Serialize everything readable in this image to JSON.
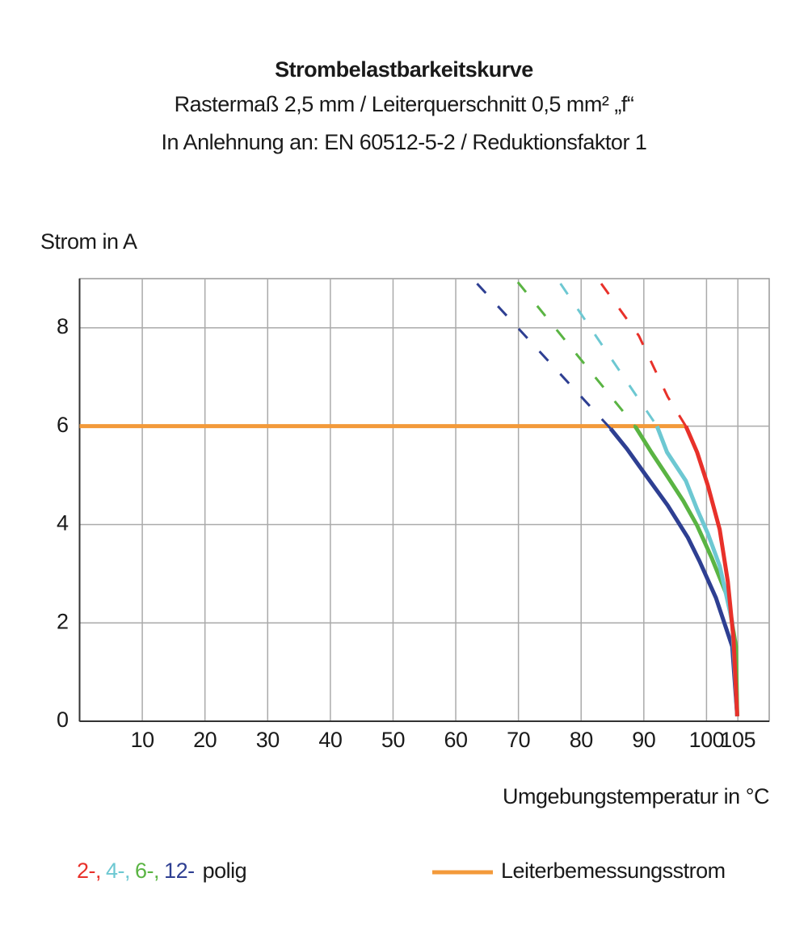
{
  "chart_data": {
    "type": "line",
    "title": "Strombelastbarkeitskurve",
    "subtitle": [
      "Rastermaß 2,5 mm / Leiterquerschnitt 0,5 mm² „f“",
      "In Anlehnung an: EN 60512-5-2 / Reduktionsfaktor 1"
    ],
    "ylabel": "Strom in A",
    "xlabel": "Umgebungstemperatur in °C",
    "xlim": [
      0,
      110
    ],
    "ylim": [
      0,
      9
    ],
    "xticks": [
      10,
      20,
      30,
      40,
      50,
      60,
      70,
      80,
      90,
      100,
      105
    ],
    "yticks": [
      0,
      2,
      4,
      6,
      8
    ],
    "grid": true,
    "legend_suffix": "polig",
    "series": [
      {
        "name": "2-,",
        "color": "#e8312a",
        "x": [
          96.7,
          98.5,
          100.2,
          102.1,
          103.4,
          104.3,
          104.9
        ],
        "values": [
          6,
          5.47,
          4.8,
          3.9,
          2.84,
          1.69,
          0.1
        ],
        "dashed_x": [
          83.2,
          89.2,
          93.8,
          96.7
        ],
        "dashed_values": [
          8.9,
          7.84,
          6.6,
          6
        ]
      },
      {
        "name": "4-,",
        "color": "#6dc8d2",
        "x": [
          92.1,
          93.7,
          96.7,
          98.5,
          100.2,
          102.1,
          104.1,
          104.9
        ],
        "values": [
          6,
          5.47,
          4.89,
          4.31,
          3.82,
          3.16,
          2.02,
          0.1
        ],
        "dashed_x": [
          76.7,
          92.1
        ],
        "dashed_values": [
          8.9,
          6
        ]
      },
      {
        "name": "6-,",
        "color": "#5ab443",
        "x": [
          88.6,
          91.2,
          93.8,
          96.3,
          98.5,
          100.8,
          103.4,
          104.7,
          104.9
        ],
        "values": [
          6,
          5.47,
          4.97,
          4.48,
          3.98,
          3.33,
          2.51,
          1.52,
          0.1
        ],
        "dashed_x": [
          69.9,
          88.6
        ],
        "dashed_values": [
          8.93,
          6
        ]
      },
      {
        "name": "12-",
        "color": "#2e3f92",
        "x": [
          84.7,
          87.3,
          90.5,
          93.8,
          97,
          98.9,
          101.5,
          104.1,
          104.9
        ],
        "values": [
          5.95,
          5.54,
          4.97,
          4.39,
          3.74,
          3.25,
          2.51,
          1.52,
          0.1
        ],
        "dashed_x": [
          63.4,
          84.7
        ],
        "dashed_values": [
          8.9,
          5.95
        ]
      },
      {
        "name": "Leiterbemessungsstrom",
        "color": "#f39a3a",
        "x": [
          0,
          96.7
        ],
        "values": [
          6,
          6
        ]
      }
    ]
  }
}
